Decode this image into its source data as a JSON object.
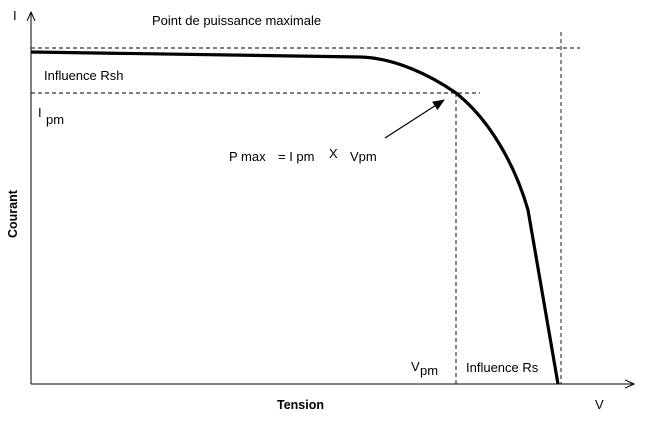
{
  "title": "Point de puissance maximale",
  "axes": {
    "y_symbol": "I",
    "x_symbol": "V",
    "y_label": "Courant",
    "x_label": "Tension"
  },
  "labels": {
    "rsh": "Influence Rsh",
    "rs": "Influence Rs",
    "ipm_main": "I",
    "ipm_sub": "pm",
    "vpm_main": "V",
    "vpm_sub": "pm",
    "pmax_p": "P max",
    "pmax_eq": "= I pm",
    "pmax_x": "X",
    "pmax_v": "Vpm"
  },
  "colors": {
    "curve": "#000000",
    "axes": "#000000",
    "guides": "#000000"
  }
}
